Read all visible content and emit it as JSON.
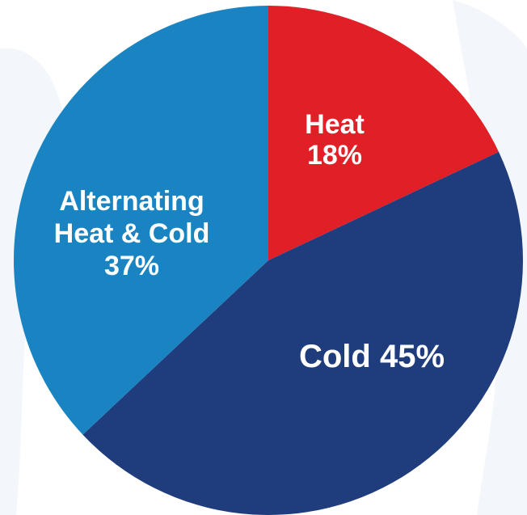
{
  "chart_data": {
    "type": "pie",
    "title": "",
    "categories": [
      "Heat",
      "Cold",
      "Alternating Heat & Cold"
    ],
    "values": [
      18,
      45,
      37
    ],
    "unit": "%",
    "slices": [
      {
        "name": "Heat",
        "value": 18,
        "color": "#e11f26",
        "label_lines": [
          "Heat",
          "18%"
        ]
      },
      {
        "name": "Cold",
        "value": 45,
        "color": "#1f3c7c",
        "label_lines": [
          "Cold 45%"
        ]
      },
      {
        "name": "Alternating Heat & Cold",
        "value": 37,
        "color": "#1a84c3",
        "label_lines": [
          "Alternating",
          "Heat & Cold",
          "37%"
        ]
      }
    ],
    "start_angle_deg": 0,
    "direction": "clockwise",
    "legend": "none",
    "labels_inside_slices": true
  },
  "colors": {
    "background": "#ffffff",
    "background_figures": "#f3f7fb",
    "label_text": "#ffffff"
  }
}
